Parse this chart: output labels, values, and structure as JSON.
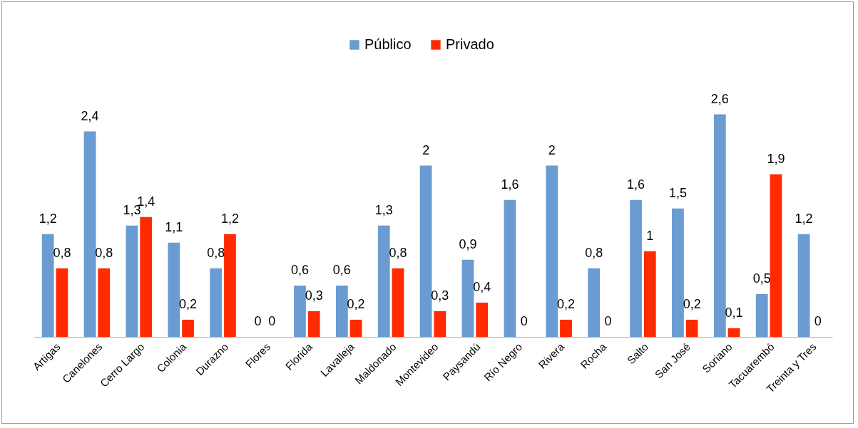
{
  "chart_data": {
    "type": "bar",
    "categories": [
      "Artigas",
      "Canelones",
      "Cerro Largo",
      "Colonia",
      "Durazno",
      "Flores",
      "Florida",
      "Lavalleja",
      "Maldonado",
      "Montevideo",
      "Paysandú",
      "Río Negro",
      "Rivera",
      "Rocha",
      "Salto",
      "San José",
      "Soriano",
      "Tacuarembó",
      "Treinta y Tres"
    ],
    "series": [
      {
        "name": "Público",
        "color": "#6a9bd1",
        "values": [
          1.2,
          2.4,
          1.3,
          1.1,
          0.8,
          0,
          0.6,
          0.6,
          1.3,
          2,
          0.9,
          1.6,
          2,
          0.8,
          1.6,
          1.5,
          2.6,
          0.5,
          1.2
        ],
        "value_labels": [
          "1,2",
          "2,4",
          "1,3",
          "1,1",
          "0,8",
          "0",
          "0,6",
          "0,6",
          "1,3",
          "2",
          "0,9",
          "1,6",
          "2",
          "0,8",
          "1,6",
          "1,5",
          "2,6",
          "0,5",
          "1,2"
        ]
      },
      {
        "name": "Privado",
        "color": "#ff2a00",
        "values": [
          0.8,
          0.8,
          1.4,
          0.2,
          1.2,
          0,
          0.3,
          0.2,
          0.8,
          0.3,
          0.4,
          0,
          0.2,
          0,
          1,
          0.2,
          0.1,
          1.9,
          0
        ],
        "value_labels": [
          "0,8",
          "0,8",
          "1,4",
          "0,2",
          "1,2",
          "0",
          "0,3",
          "0,2",
          "0,8",
          "0,3",
          "0,4",
          "0",
          "0,2",
          "0",
          "1",
          "0,2",
          "0,1",
          "1,9",
          "0"
        ]
      }
    ],
    "legend": "top",
    "grid": false
  }
}
